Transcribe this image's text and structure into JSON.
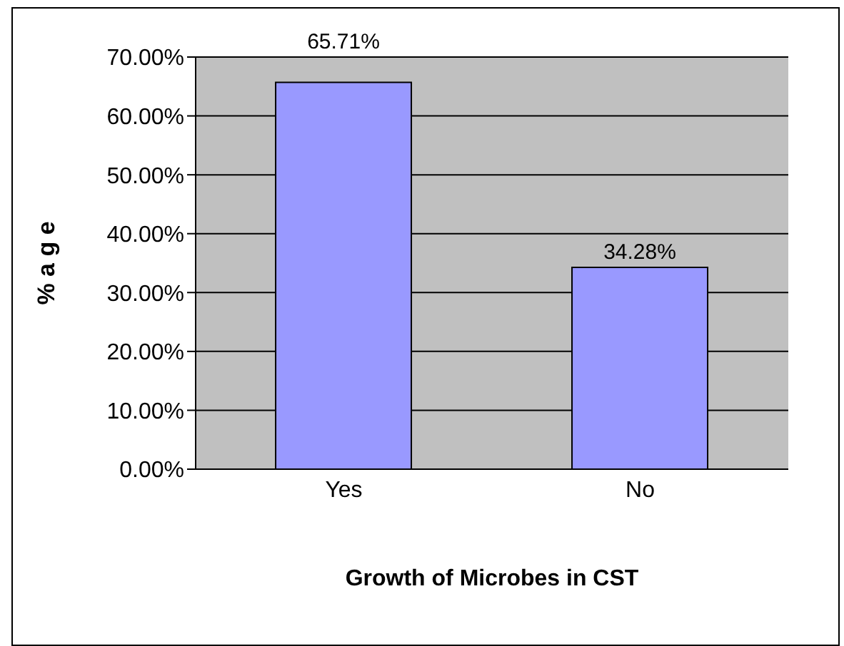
{
  "chart_data": {
    "type": "bar",
    "xlabel": "Growth of Microbes in CST",
    "ylabel": "% a g e",
    "categories": [
      "Yes",
      "No"
    ],
    "values": [
      65.71,
      34.28
    ],
    "color": "#9999ff",
    "value_labels": [
      "65.71%",
      "34.28%"
    ],
    "ylim": [
      0,
      70
    ],
    "yticks": [
      {
        "value": 0,
        "label": "0.00%"
      },
      {
        "value": 10,
        "label": "10.00%"
      },
      {
        "value": 20,
        "label": "20.00%"
      },
      {
        "value": 30,
        "label": "30.00%"
      },
      {
        "value": 40,
        "label": "40.00%"
      },
      {
        "value": 50,
        "label": "50.00%"
      },
      {
        "value": 60,
        "label": "60.00%"
      },
      {
        "value": 70,
        "label": "70.00%"
      }
    ],
    "grid": "y",
    "legend": false
  }
}
